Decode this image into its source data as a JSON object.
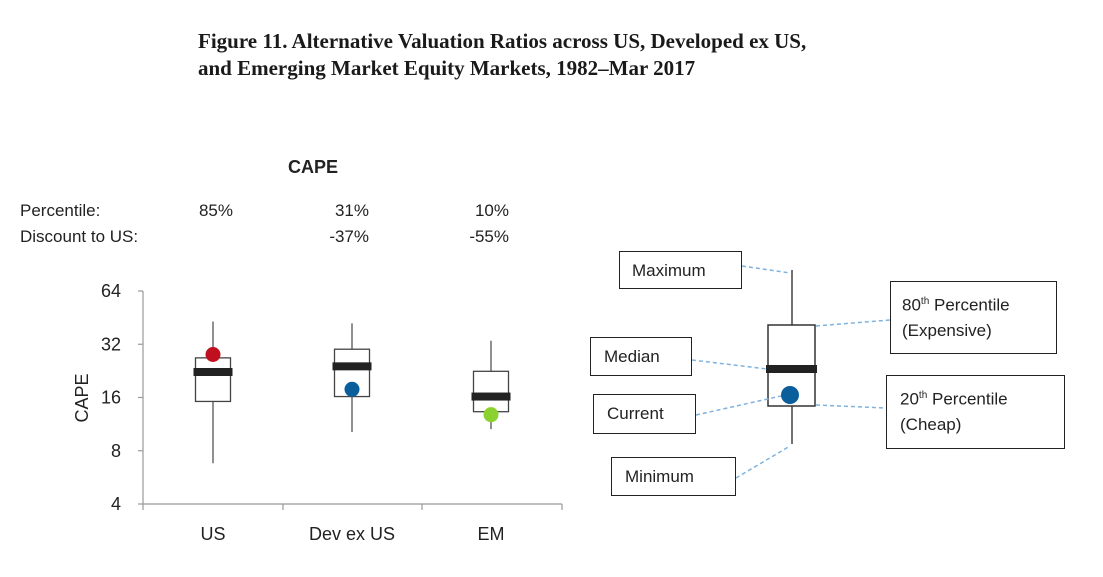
{
  "figure_title": {
    "line1": "Figure 11. Alternative Valuation Ratios across US, Developed ex US,",
    "line2": "and Emerging Market Equity Markets, 1982–Mar 2017"
  },
  "chart_data": {
    "type": "box",
    "title": "CAPE",
    "ylabel": "CAPE",
    "y_scale": "log2",
    "ylim": [
      4,
      64
    ],
    "yticks": [
      "64",
      "32",
      "16",
      "8",
      "4"
    ],
    "ytick_values": [
      64,
      32,
      16,
      8,
      4
    ],
    "categories": [
      "US",
      "Dev ex US",
      "EM"
    ],
    "table": {
      "row_labels": [
        "Percentile:",
        "Discount to US:"
      ],
      "percentile": [
        "85%",
        "31%",
        "10%"
      ],
      "discount_to_us": [
        "",
        "-37%",
        "-55%"
      ]
    },
    "boxes": [
      {
        "category": "US",
        "min": 6.8,
        "p20": 15.2,
        "median": 22.3,
        "p80": 26.8,
        "max": 43,
        "current": 28,
        "current_color": "#c00f1e"
      },
      {
        "category": "Dev ex US",
        "min": 10.2,
        "p20": 16.2,
        "median": 24,
        "p80": 30,
        "max": 42,
        "current": 17.8,
        "current_color": "#0b5e9c"
      },
      {
        "category": "EM",
        "min": 10.6,
        "p20": 13.3,
        "median": 16.2,
        "p80": 22.5,
        "max": 33.5,
        "current": 12.8,
        "current_color": "#8bd12f"
      }
    ]
  },
  "legend": {
    "maximum": "Maximum",
    "p80_main": "80",
    "p80_sup": "th",
    "p80_rest": " Percentile",
    "p80_sub": "(Expensive)",
    "median": "Median",
    "current": "Current",
    "p20_main": "20",
    "p20_sup": "th",
    "p20_rest": " Percentile",
    "p20_sub": "(Cheap)",
    "minimum": "Minimum",
    "current_color": "#0b5e9c",
    "leader_color": "#7fb2df"
  }
}
